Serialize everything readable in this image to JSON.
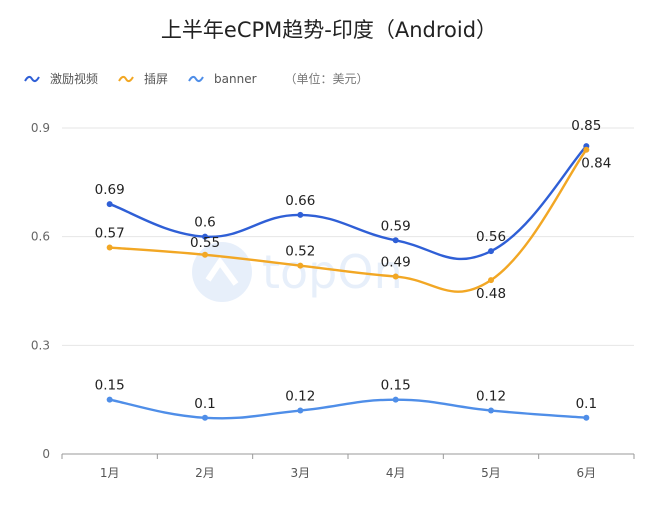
{
  "chart_data": {
    "type": "line",
    "title": "上半年eCPM趋势-印度（Android）",
    "categories": [
      "1月",
      "2月",
      "3月",
      "4月",
      "5月",
      "6月"
    ],
    "series": [
      {
        "name": "激励视频",
        "values": [
          0.69,
          0.6,
          0.66,
          0.59,
          0.56,
          0.85
        ],
        "color": "#2f5fd6"
      },
      {
        "name": "插屏",
        "values": [
          0.57,
          0.55,
          0.52,
          0.49,
          0.48,
          0.84
        ],
        "color": "#f2a724"
      },
      {
        "name": "banner",
        "values": [
          0.15,
          0.1,
          0.12,
          0.15,
          0.12,
          0.1
        ],
        "color": "#4f8ee8"
      }
    ],
    "unit_note": "（单位：美元）",
    "yticks": [
      "0",
      "0.3",
      "0.6",
      "0.9"
    ],
    "ylim": [
      0,
      0.9
    ],
    "grid": true,
    "legend_position": "top-left",
    "watermark": "topOn"
  }
}
